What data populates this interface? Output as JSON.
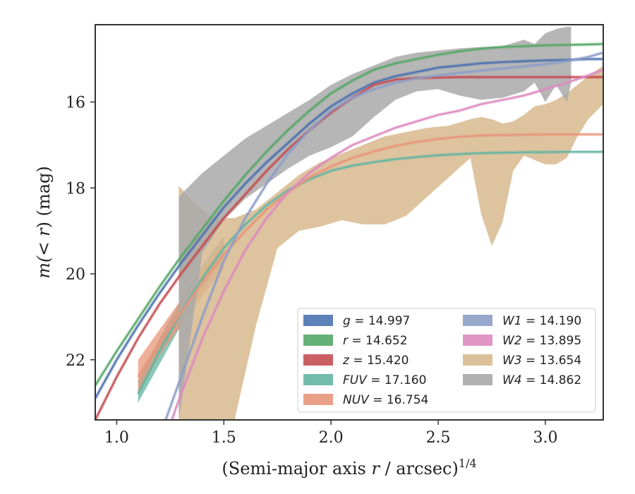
{
  "chart_data": {
    "type": "area",
    "title": "",
    "xlabel_prefix": "(Semi-major axis ",
    "xlabel_var": "r",
    "xlabel_suffix": " / arcsec)",
    "xlabel_sup": "1/4",
    "ylabel_prefix": "m(",
    "ylabel_var": "< r",
    "ylabel_suffix": ") (mag)",
    "xlim": [
      0.9,
      3.27
    ],
    "ylim": [
      23.4,
      14.2
    ],
    "y_inverted": true,
    "grid": false,
    "legend_position": "lower-right",
    "xticks": [
      1.0,
      1.5,
      2.0,
      2.5,
      3.0
    ],
    "xtick_labels": [
      "1.0",
      "1.5",
      "2.0",
      "2.5",
      "3.0"
    ],
    "yticks": [
      16,
      18,
      20,
      22
    ],
    "ytick_labels": [
      "16",
      "18",
      "20",
      "22"
    ],
    "series": [
      {
        "band": "g",
        "label_var": "g",
        "label_value": " = 14.997",
        "color": "#4c72b0",
        "curve": {
          "x": [
            0.9,
            1.0,
            1.1,
            1.2,
            1.3,
            1.4,
            1.5,
            1.6,
            1.7,
            1.8,
            1.9,
            2.0,
            2.1,
            2.2,
            2.3,
            2.4,
            2.5,
            2.6,
            2.7,
            2.8,
            2.9,
            3.0,
            3.1,
            3.2,
            3.27
          ],
          "y": [
            22.9,
            22.0,
            21.2,
            20.45,
            19.75,
            19.1,
            18.45,
            17.9,
            17.4,
            16.95,
            16.5,
            16.1,
            15.8,
            15.55,
            15.4,
            15.3,
            15.2,
            15.15,
            15.1,
            15.07,
            15.05,
            15.03,
            15.02,
            15.0,
            15.0
          ]
        },
        "band_x": [],
        "band_upper": [],
        "band_lower": []
      },
      {
        "band": "r",
        "label_var": "r",
        "label_value": " = 14.652",
        "color": "#55a868",
        "curve": {
          "x": [
            0.9,
            1.0,
            1.1,
            1.2,
            1.3,
            1.4,
            1.5,
            1.6,
            1.7,
            1.8,
            1.9,
            2.0,
            2.1,
            2.2,
            2.3,
            2.4,
            2.5,
            2.6,
            2.7,
            2.8,
            2.9,
            3.0,
            3.1,
            3.2,
            3.27
          ],
          "y": [
            22.6,
            21.8,
            21.05,
            20.3,
            19.6,
            18.95,
            18.3,
            17.7,
            17.15,
            16.65,
            16.2,
            15.8,
            15.5,
            15.25,
            15.1,
            15.0,
            14.9,
            14.82,
            14.76,
            14.72,
            14.7,
            14.68,
            14.67,
            14.66,
            14.65
          ]
        },
        "band_x": [],
        "band_upper": [],
        "band_lower": []
      },
      {
        "band": "z",
        "label_var": "z",
        "label_value": " = 15.420",
        "color": "#c44e52",
        "curve": {
          "x": [
            0.9,
            1.0,
            1.1,
            1.2,
            1.3,
            1.4,
            1.5,
            1.6,
            1.7,
            1.8,
            1.9,
            2.0,
            2.1,
            2.2,
            2.3,
            2.4,
            2.5,
            2.6,
            2.7,
            2.8,
            2.9,
            3.0,
            3.1,
            3.2,
            3.27
          ],
          "y": [
            23.4,
            22.4,
            21.5,
            20.7,
            20.0,
            19.35,
            18.7,
            18.15,
            17.6,
            17.1,
            16.65,
            16.25,
            15.9,
            15.6,
            15.48,
            15.44,
            15.43,
            15.42,
            15.42,
            15.42,
            15.42,
            15.42,
            15.42,
            15.42,
            15.42
          ]
        },
        "band_x": [],
        "band_upper": [],
        "band_lower": []
      },
      {
        "band": "FUV",
        "label_var": "FUV",
        "label_value": " = 17.160",
        "color": "#64b5a2",
        "curve": {
          "x": [
            1.1,
            1.2,
            1.3,
            1.4,
            1.5,
            1.6,
            1.7,
            1.8,
            1.9,
            2.0,
            2.1,
            2.2,
            2.3,
            2.4,
            2.5,
            2.6,
            2.7,
            2.8,
            2.9,
            3.0,
            3.1,
            3.2,
            3.27
          ],
          "y": [
            22.8,
            21.8,
            20.9,
            20.1,
            19.4,
            18.85,
            18.4,
            18.05,
            17.8,
            17.6,
            17.48,
            17.4,
            17.33,
            17.28,
            17.24,
            17.21,
            17.19,
            17.18,
            17.17,
            17.165,
            17.16,
            17.16,
            17.16
          ]
        },
        "band_x": [
          1.1,
          1.2,
          1.3,
          1.4,
          1.5
        ],
        "band_upper": [
          22.5,
          21.5,
          20.6,
          19.8,
          19.1
        ],
        "band_lower": [
          23.0,
          22.1,
          21.2,
          20.4,
          19.7
        ]
      },
      {
        "band": "NUV",
        "label_var": "NUV",
        "label_value": " = 16.754",
        "color": "#e8967a",
        "curve": {
          "x": [
            1.1,
            1.2,
            1.3,
            1.4,
            1.5,
            1.6,
            1.7,
            1.8,
            1.9,
            2.0,
            2.1,
            2.2,
            2.3,
            2.4,
            2.5,
            2.6,
            2.7,
            2.8,
            2.9,
            3.0,
            3.1,
            3.2,
            3.27
          ],
          "y": [
            22.4,
            21.6,
            20.9,
            20.2,
            19.55,
            19.0,
            18.5,
            18.1,
            17.75,
            17.5,
            17.3,
            17.15,
            17.02,
            16.93,
            16.86,
            16.81,
            16.78,
            16.77,
            16.76,
            16.755,
            16.754,
            16.754,
            16.754
          ]
        },
        "band_x": [
          1.1,
          1.2,
          1.3,
          1.4,
          1.5
        ],
        "band_upper": [
          22.0,
          21.3,
          20.6,
          19.9,
          19.2
        ],
        "band_lower": [
          22.8,
          21.9,
          21.2,
          20.5,
          19.9
        ]
      },
      {
        "band": "W1",
        "label_var": "W1",
        "label_value": " = 14.190",
        "color": "#8c9ec8",
        "curve": {
          "x": [
            1.1,
            1.2,
            1.3,
            1.4,
            1.5,
            1.6,
            1.7,
            1.8,
            1.9,
            2.0,
            2.1,
            2.2,
            2.3,
            2.4,
            2.5,
            2.6,
            2.7,
            2.8,
            2.9,
            3.0,
            3.1,
            3.2,
            3.27
          ],
          "y": [
            25.0,
            23.8,
            22.4,
            21.0,
            19.7,
            18.7,
            17.9,
            17.2,
            16.65,
            16.2,
            15.9,
            15.7,
            15.55,
            15.45,
            15.38,
            15.32,
            15.27,
            15.22,
            15.17,
            15.12,
            15.05,
            14.95,
            14.85
          ]
        },
        "band_x": [],
        "band_upper": [],
        "band_lower": []
      },
      {
        "band": "W2",
        "label_var": "W2",
        "label_value": " = 13.895",
        "color": "#db8bc0",
        "curve": {
          "x": [
            1.2,
            1.3,
            1.4,
            1.5,
            1.6,
            1.7,
            1.8,
            1.9,
            2.0,
            2.1,
            2.2,
            2.3,
            2.4,
            2.5,
            2.6,
            2.7,
            2.8,
            2.9,
            3.0,
            3.1,
            3.2,
            3.27
          ],
          "y": [
            24.2,
            22.8,
            21.5,
            20.4,
            19.45,
            18.7,
            18.1,
            17.65,
            17.3,
            17.0,
            16.8,
            16.6,
            16.45,
            16.3,
            16.2,
            16.05,
            15.95,
            15.85,
            15.7,
            15.55,
            15.38,
            15.25
          ]
        },
        "band_x": [],
        "band_upper": [],
        "band_lower": []
      },
      {
        "band": "W3",
        "label_var": "W3",
        "label_value": " = 13.654",
        "color": "#d8b98e",
        "curve": {
          "x": [],
          "y": []
        },
        "band_x": [
          1.29,
          1.35,
          1.45,
          1.55,
          1.65,
          1.75,
          1.85,
          1.95,
          2.05,
          2.15,
          2.25,
          2.35,
          2.45,
          2.55,
          2.65,
          2.7,
          2.75,
          2.8,
          2.85,
          2.9,
          2.95,
          3.0,
          3.05,
          3.1,
          3.15,
          3.2,
          3.27
        ],
        "band_upper": [
          17.95,
          18.3,
          18.7,
          18.7,
          18.5,
          18.1,
          17.7,
          17.4,
          17.2,
          17.0,
          16.8,
          16.7,
          16.6,
          16.55,
          16.4,
          16.35,
          16.4,
          16.5,
          16.45,
          16.3,
          16.1,
          16.05,
          15.95,
          15.8,
          15.6,
          15.4,
          15.15
        ],
        "band_lower": [
          23.4,
          23.4,
          23.4,
          23.4,
          21.2,
          19.4,
          19.0,
          18.9,
          18.75,
          18.85,
          18.85,
          18.65,
          18.2,
          17.75,
          17.3,
          18.6,
          19.35,
          18.8,
          17.6,
          17.25,
          17.35,
          17.45,
          17.45,
          17.3,
          16.8,
          16.4,
          16.05
        ]
      },
      {
        "band": "W4",
        "label_var": "W4",
        "label_value": " = 14.862",
        "color": "#a9a9a9",
        "curve": {
          "x": [],
          "y": []
        },
        "band_x": [
          1.29,
          1.4,
          1.5,
          1.6,
          1.7,
          1.8,
          1.9,
          2.0,
          2.1,
          2.2,
          2.3,
          2.4,
          2.5,
          2.6,
          2.7,
          2.8,
          2.9,
          2.95,
          3.0,
          3.05,
          3.1,
          3.12
        ],
        "band_upper": [
          18.2,
          17.65,
          17.25,
          16.85,
          16.55,
          16.25,
          15.95,
          15.6,
          15.35,
          15.15,
          14.95,
          14.85,
          14.8,
          14.75,
          14.72,
          14.7,
          14.55,
          14.65,
          14.4,
          14.3,
          14.25,
          14.25
        ],
        "band_lower": [
          23.4,
          19.5,
          18.75,
          18.25,
          17.9,
          17.55,
          17.25,
          17.05,
          16.8,
          16.35,
          15.95,
          15.75,
          15.7,
          15.85,
          15.95,
          15.9,
          15.75,
          15.55,
          16.0,
          15.6,
          16.0,
          15.55
        ]
      }
    ]
  }
}
